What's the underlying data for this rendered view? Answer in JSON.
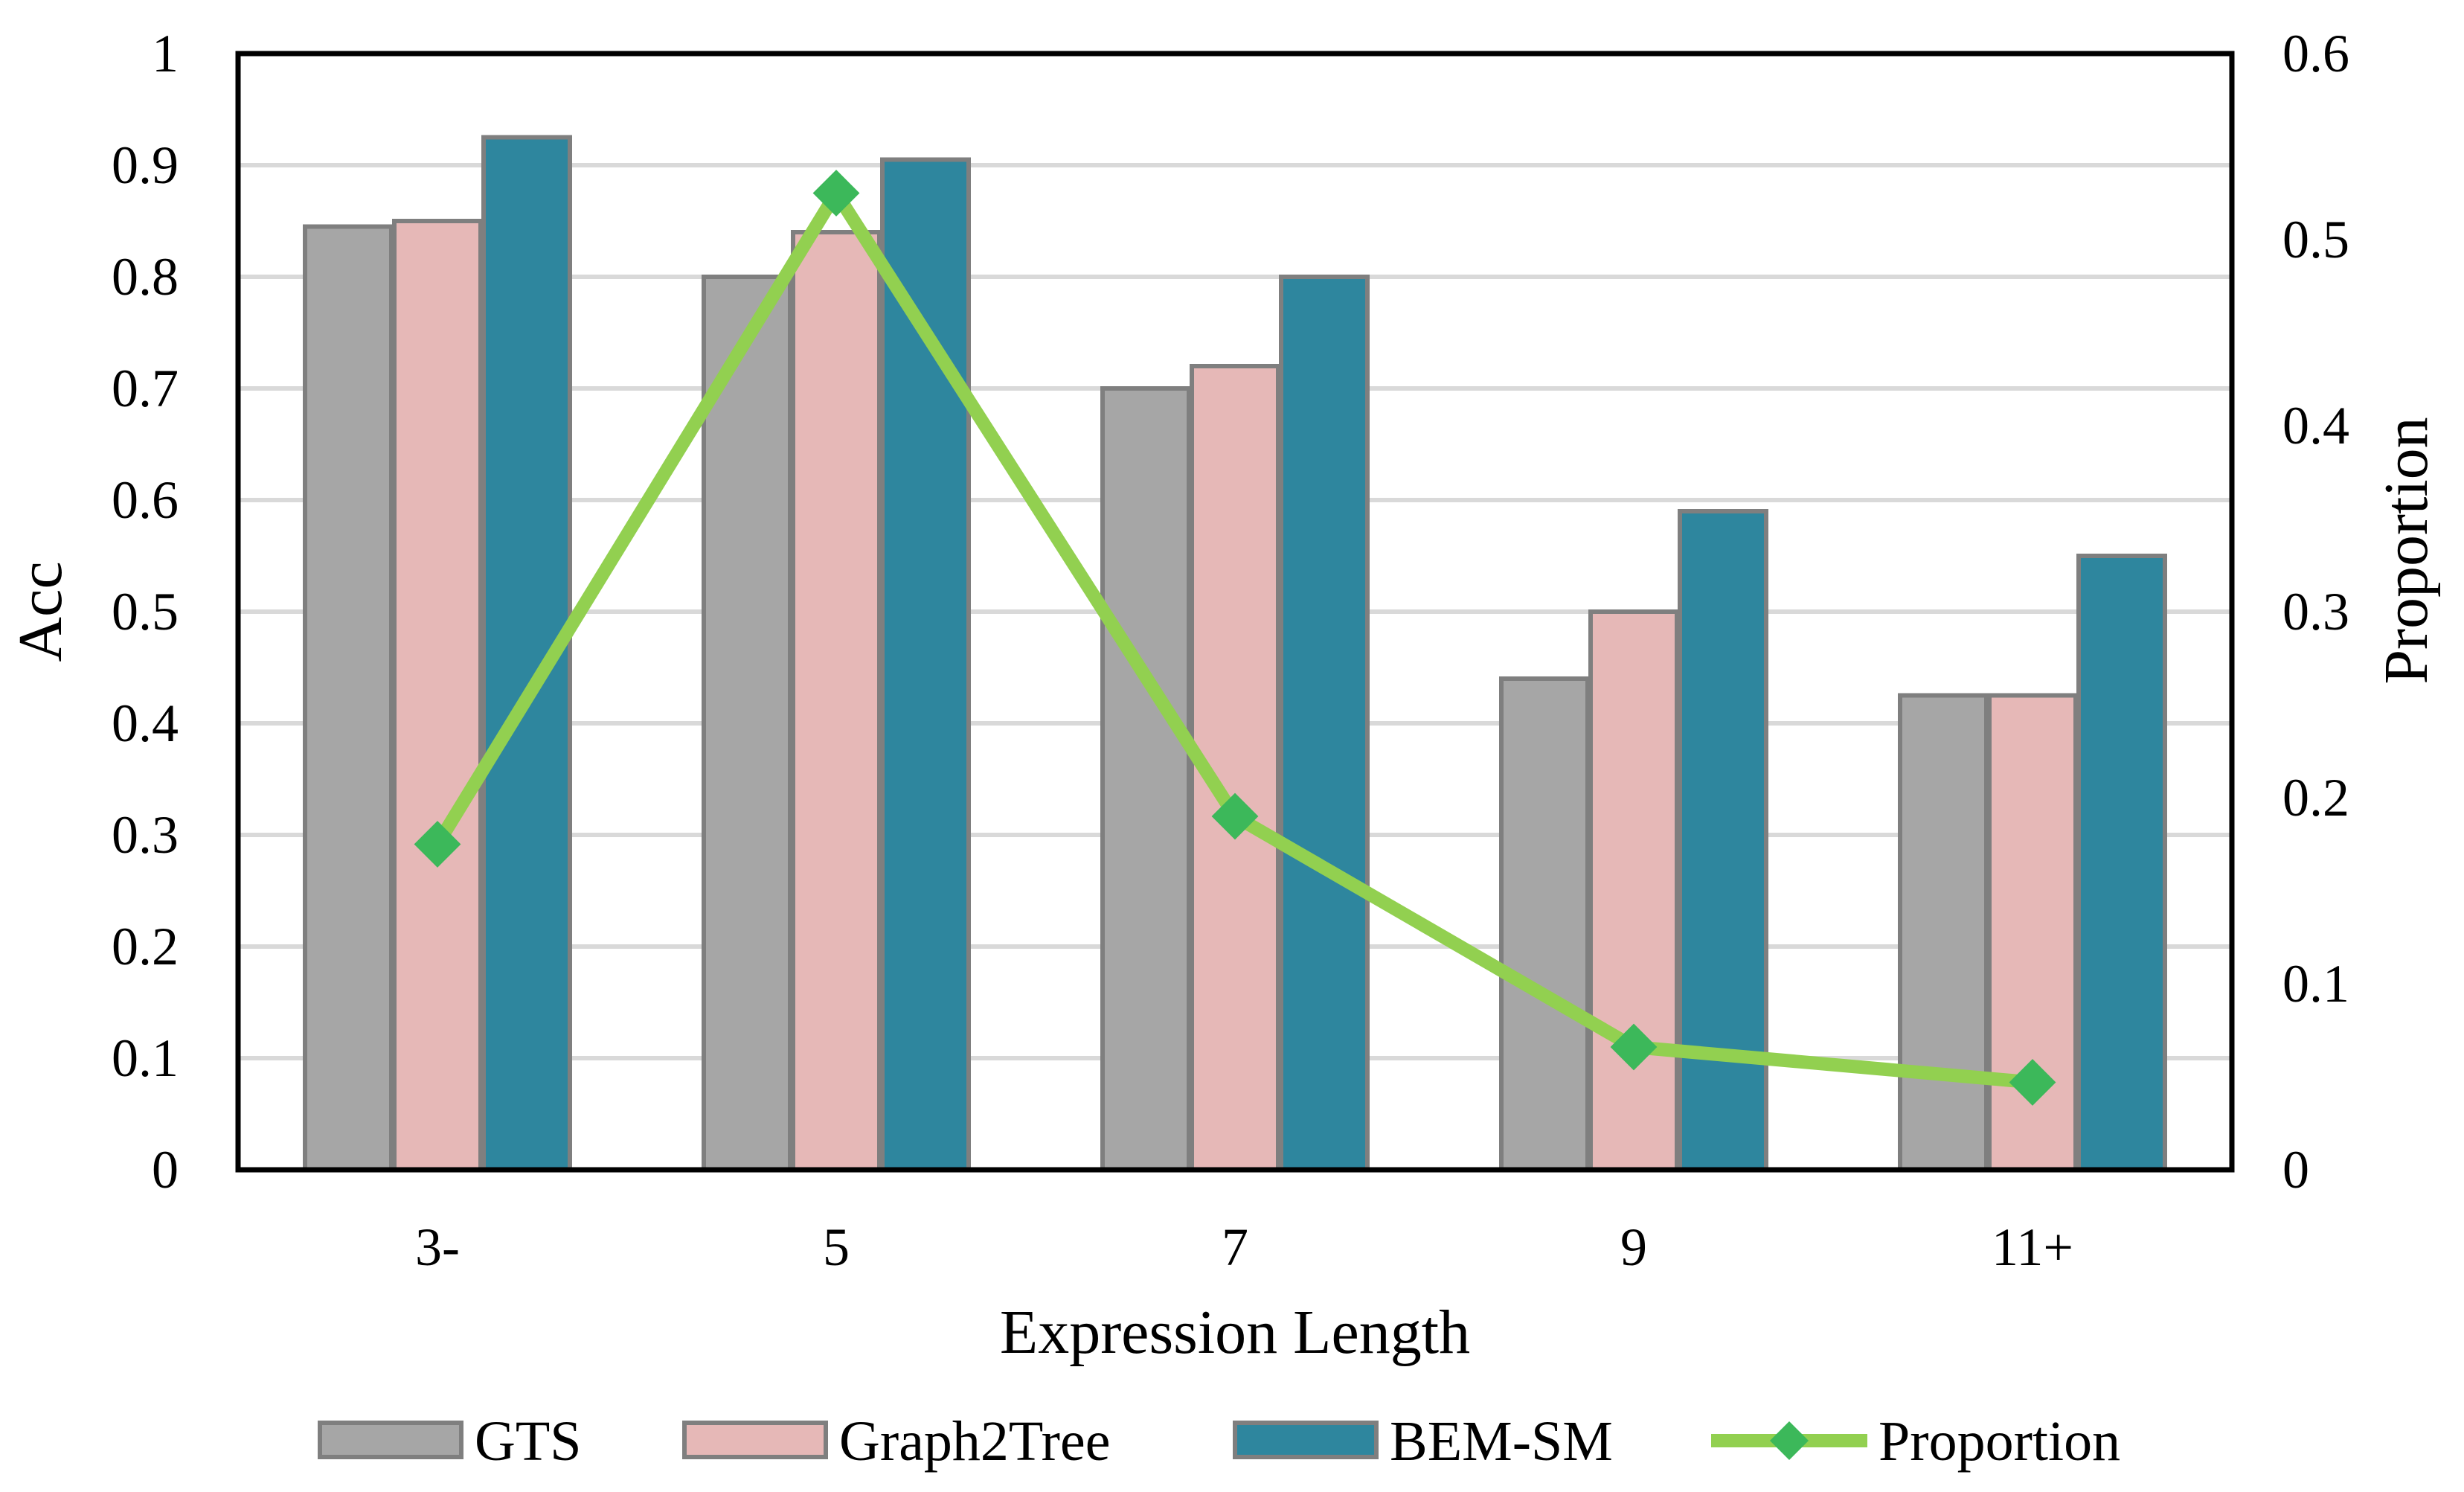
{
  "chart_data": {
    "type": "bar",
    "title": "",
    "xlabel": "Expression Length",
    "ylabel": "Acc",
    "y2label": "Proportion",
    "categories": [
      "3-",
      "5",
      "7",
      "9",
      "11+"
    ],
    "ylim": [
      0,
      1
    ],
    "yticks": [
      "0",
      "0.1",
      "0.2",
      "0.3",
      "0.4",
      "0.5",
      "0.6",
      "0.7",
      "0.8",
      "0.9",
      "1"
    ],
    "y2lim": [
      0,
      0.6
    ],
    "y2ticks": [
      "0",
      "0.1",
      "0.2",
      "0.3",
      "0.4",
      "0.5",
      "0.6"
    ],
    "grid": true,
    "legend_position": "bottom",
    "series": [
      {
        "name": "GTS",
        "type": "bar",
        "axis": "left",
        "color": "#a6a6a6",
        "values": [
          0.845,
          0.8,
          0.7,
          0.44,
          0.425
        ]
      },
      {
        "name": "Graph2Tree",
        "type": "bar",
        "axis": "left",
        "color": "#e6b8b7",
        "values": [
          0.85,
          0.84,
          0.72,
          0.5,
          0.425
        ]
      },
      {
        "name": "BEM-SM",
        "type": "bar",
        "axis": "left",
        "color": "#2e869e",
        "values": [
          0.925,
          0.905,
          0.8,
          0.59,
          0.55
        ]
      },
      {
        "name": "Proportion",
        "type": "line",
        "axis": "right",
        "color": "#92d050",
        "marker": "diamond",
        "marker_color": "#3cb85a",
        "values": [
          0.175,
          0.525,
          0.19,
          0.066,
          0.047
        ]
      }
    ]
  }
}
